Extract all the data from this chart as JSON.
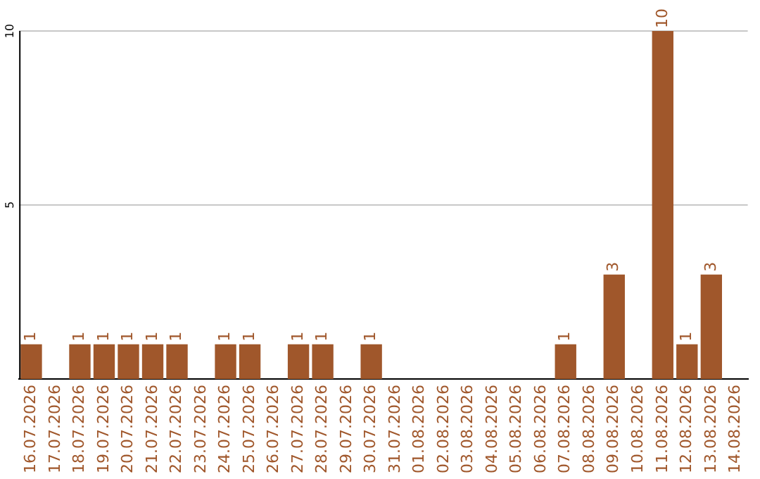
{
  "chart_data": {
    "type": "bar",
    "categories": [
      "16.07.2026",
      "17.07.2026",
      "18.07.2026",
      "19.07.2026",
      "20.07.2026",
      "21.07.2026",
      "22.07.2026",
      "23.07.2026",
      "24.07.2026",
      "25.07.2026",
      "26.07.2026",
      "27.07.2026",
      "28.07.2026",
      "29.07.2026",
      "30.07.2026",
      "31.07.2026",
      "01.08.2026",
      "02.08.2026",
      "03.08.2026",
      "04.08.2026",
      "05.08.2026",
      "06.08.2026",
      "07.08.2026",
      "08.08.2026",
      "09.08.2026",
      "10.08.2026",
      "11.08.2026",
      "12.08.2026",
      "13.08.2026",
      "14.08.2026"
    ],
    "values": [
      1,
      0,
      1,
      1,
      1,
      1,
      1,
      0,
      1,
      1,
      0,
      1,
      1,
      0,
      1,
      0,
      0,
      0,
      0,
      0,
      0,
      0,
      1,
      0,
      3,
      0,
      10,
      1,
      3,
      0
    ],
    "value_labels": [
      "1",
      null,
      "1",
      "1",
      "1",
      "1",
      "1",
      null,
      "1",
      "1",
      null,
      "1",
      "1",
      null,
      "1",
      null,
      null,
      null,
      null,
      null,
      null,
      null,
      "1",
      null,
      "3",
      null,
      "10",
      "1",
      "3",
      null
    ],
    "color": "#a0572b",
    "ylim": [
      0,
      10
    ],
    "yticks": [
      5,
      10
    ],
    "grid": "y",
    "legend": false
  }
}
